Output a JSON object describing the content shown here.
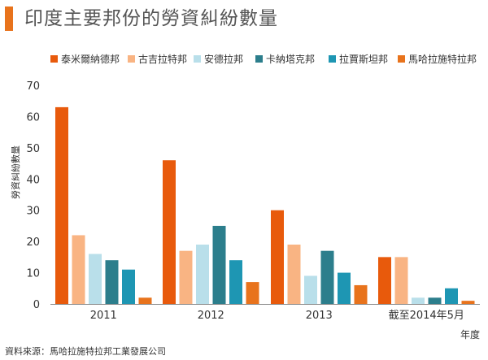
{
  "title": "印度主要邦份的勞資糾紛數量",
  "accent_color": "#e8731c",
  "source": "資料來源：馬哈拉施特拉邦工業發展公司",
  "chart_data": {
    "type": "bar",
    "title": "印度主要邦份的勞資糾紛數量",
    "xlabel": "年度",
    "ylabel": "勞資糾紛數量",
    "ylim": [
      0,
      70
    ],
    "yticks": [
      0,
      10,
      20,
      30,
      40,
      50,
      60,
      70
    ],
    "grid": false,
    "legend_position": "top",
    "categories": [
      "2011",
      "2012",
      "2013",
      "截至2014年5月"
    ],
    "series": [
      {
        "name": "泰米爾納德邦",
        "color": "#e85a0c",
        "values": [
          63,
          46,
          30,
          15
        ]
      },
      {
        "name": "古吉拉特邦",
        "color": "#f9b483",
        "values": [
          22,
          17,
          19,
          15
        ]
      },
      {
        "name": "安德拉邦",
        "color": "#b9dfea",
        "values": [
          16,
          19,
          9,
          2
        ]
      },
      {
        "name": "卡納塔克邦",
        "color": "#2c7e8c",
        "values": [
          14,
          25,
          17,
          2
        ]
      },
      {
        "name": "拉賈斯坦邦",
        "color": "#1e96b3",
        "values": [
          11,
          14,
          10,
          5
        ]
      },
      {
        "name": "馬哈拉施特拉邦",
        "color": "#e8731c",
        "values": [
          2,
          7,
          6,
          1
        ]
      }
    ]
  }
}
